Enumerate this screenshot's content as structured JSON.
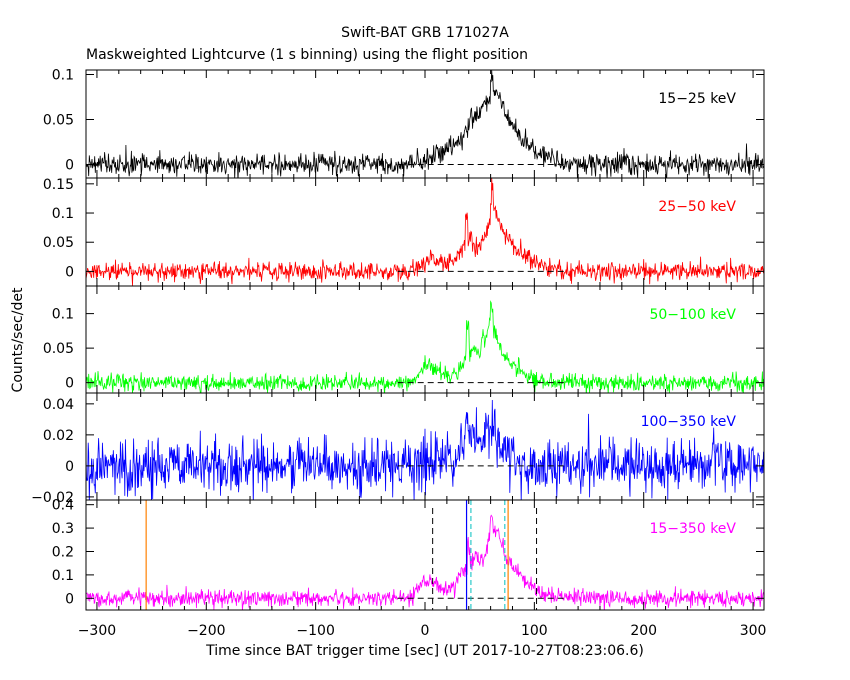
{
  "title": "Swift-BAT GRB 171027A",
  "subtitle": "Maskweighted Lightcurve (1 s binning) using the flight position",
  "xlabel": "Time since BAT trigger time [sec] (UT 2017-10-27T08:23:06.6)",
  "ylabel": "Counts/sec/det",
  "chart_data": {
    "type": "line",
    "xlim": [
      -310,
      310
    ],
    "xticks": [
      -300,
      -200,
      -100,
      0,
      100,
      200,
      300
    ],
    "xtick_labels": [
      "−300",
      "−200",
      "−100",
      "0",
      "100",
      "200",
      "300"
    ],
    "markers": {
      "black_dashed": [
        7,
        102
      ],
      "blue": [
        38
      ],
      "cyan_dashed": [
        42,
        73
      ],
      "orange": [
        -255,
        76
      ]
    },
    "panels": [
      {
        "band": "15−25 keV",
        "color": "#000000",
        "ylim": [
          -0.015,
          0.105
        ],
        "yticks": [
          0,
          0.05,
          0.1
        ],
        "ytick_labels": [
          "0",
          "0.05",
          "0.1"
        ],
        "noise": 0.006,
        "profile": [
          [
            -310,
            0
          ],
          [
            -20,
            0
          ],
          [
            0,
            0.004
          ],
          [
            10,
            0.012
          ],
          [
            25,
            0.018
          ],
          [
            35,
            0.03
          ],
          [
            45,
            0.048
          ],
          [
            55,
            0.068
          ],
          [
            62,
            0.085
          ],
          [
            68,
            0.075
          ],
          [
            75,
            0.055
          ],
          [
            85,
            0.035
          ],
          [
            100,
            0.015
          ],
          [
            115,
            0.005
          ],
          [
            130,
            0
          ],
          [
            310,
            0
          ]
        ],
        "spikes": [
          [
            42,
            0.012
          ],
          [
            61,
            0.012
          ]
        ]
      },
      {
        "band": "25−50 keV",
        "color": "#ff0000",
        "ylim": [
          -0.025,
          0.16
        ],
        "yticks": [
          0,
          0.05,
          0.1,
          0.15
        ],
        "ytick_labels": [
          "0",
          "0.05",
          "0.1",
          "0.15"
        ],
        "noise": 0.008,
        "profile": [
          [
            -310,
            0
          ],
          [
            -15,
            0
          ],
          [
            0,
            0.02
          ],
          [
            8,
            0.025
          ],
          [
            15,
            0.015
          ],
          [
            25,
            0.012
          ],
          [
            35,
            0.04
          ],
          [
            42,
            0.06
          ],
          [
            48,
            0.04
          ],
          [
            55,
            0.06
          ],
          [
            62,
            0.11
          ],
          [
            68,
            0.085
          ],
          [
            75,
            0.06
          ],
          [
            85,
            0.035
          ],
          [
            100,
            0.015
          ],
          [
            115,
            0.005
          ],
          [
            130,
            0
          ],
          [
            310,
            0
          ]
        ],
        "spikes": [
          [
            38,
            0.06
          ],
          [
            61,
            0.04
          ]
        ]
      },
      {
        "band": "50−100 keV",
        "color": "#00ff00",
        "ylim": [
          -0.015,
          0.14
        ],
        "yticks": [
          0,
          0.05,
          0.1
        ],
        "ytick_labels": [
          "0",
          "0.05",
          "0.1"
        ],
        "noise": 0.006,
        "profile": [
          [
            -310,
            0
          ],
          [
            -10,
            0
          ],
          [
            0,
            0.03
          ],
          [
            10,
            0.015
          ],
          [
            20,
            0.008
          ],
          [
            30,
            0.015
          ],
          [
            40,
            0.04
          ],
          [
            45,
            0.05
          ],
          [
            50,
            0.045
          ],
          [
            55,
            0.06
          ],
          [
            60,
            0.095
          ],
          [
            65,
            0.065
          ],
          [
            72,
            0.04
          ],
          [
            80,
            0.025
          ],
          [
            95,
            0.01
          ],
          [
            110,
            0
          ],
          [
            310,
            0
          ]
        ],
        "spikes": [
          [
            39,
            0.06
          ],
          [
            53,
            0.02
          ],
          [
            61,
            0.03
          ]
        ]
      },
      {
        "band": "100−350 keV",
        "color": "#0000ff",
        "ylim": [
          -0.022,
          0.047
        ],
        "yticks": [
          0.04,
          0.02,
          0,
          -0.02
        ],
        "ytick_labels": [
          "0.04",
          "0.02",
          "0",
          "−0.02"
        ],
        "noise": 0.0085,
        "profile": [
          [
            -310,
            0
          ],
          [
            -5,
            0
          ],
          [
            0,
            0.006
          ],
          [
            10,
            0.005
          ],
          [
            30,
            0.008
          ],
          [
            40,
            0.018
          ],
          [
            48,
            0.015
          ],
          [
            58,
            0.025
          ],
          [
            65,
            0.018
          ],
          [
            75,
            0.008
          ],
          [
            90,
            0.002
          ],
          [
            100,
            0
          ],
          [
            310,
            0
          ]
        ],
        "spikes": [
          [
            38,
            0.015
          ]
        ]
      },
      {
        "band": "15−350 keV",
        "color": "#ff00ff",
        "ylim": [
          -0.05,
          0.42
        ],
        "yticks": [
          0,
          0.1,
          0.2,
          0.3,
          0.4
        ],
        "ytick_labels": [
          "0",
          "0.1",
          "0.2",
          "0.3",
          "0.4"
        ],
        "noise": 0.018,
        "profile": [
          [
            -310,
            0
          ],
          [
            -15,
            0
          ],
          [
            0,
            0.08
          ],
          [
            8,
            0.07
          ],
          [
            15,
            0.04
          ],
          [
            25,
            0.05
          ],
          [
            35,
            0.12
          ],
          [
            45,
            0.17
          ],
          [
            50,
            0.16
          ],
          [
            55,
            0.2
          ],
          [
            62,
            0.32
          ],
          [
            68,
            0.26
          ],
          [
            75,
            0.17
          ],
          [
            85,
            0.1
          ],
          [
            100,
            0.04
          ],
          [
            115,
            0.01
          ],
          [
            130,
            0
          ],
          [
            310,
            0
          ]
        ],
        "spikes": [
          [
            40,
            0.1
          ],
          [
            61,
            0.07
          ]
        ]
      }
    ]
  }
}
